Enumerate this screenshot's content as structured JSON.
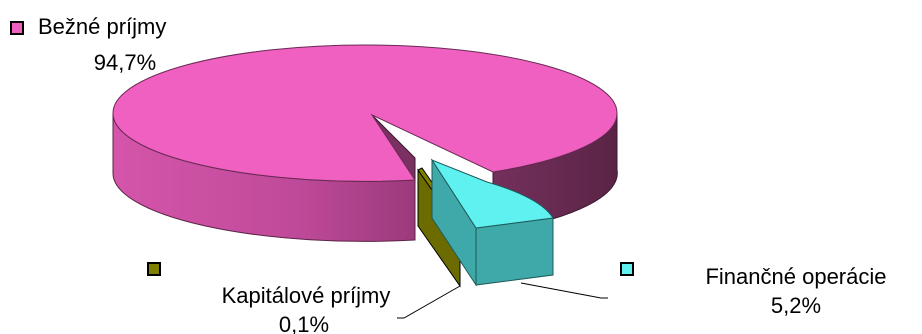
{
  "chart_data": {
    "type": "pie",
    "style": "3d-exploded",
    "title": "",
    "legend": "inline-labels",
    "series": [
      {
        "name": "",
        "slices": [
          {
            "label": "Bežné príjmy",
            "value": 94.7,
            "value_label": "94,7%",
            "color": "#F060C0",
            "side_color": "#C04A9A",
            "dark_side_color": "#662A50",
            "exploded": false
          },
          {
            "label": "Kapitálové príjmy",
            "value": 0.1,
            "value_label": "0,1%",
            "color": "#808000",
            "side_color": "#5E5E00",
            "exploded": true
          },
          {
            "label": "Finančné operácie",
            "value": 5.2,
            "value_label": "5,2%",
            "color": "#5FF0F0",
            "side_color": "#3FA8A8",
            "exploded": true
          }
        ]
      }
    ]
  }
}
